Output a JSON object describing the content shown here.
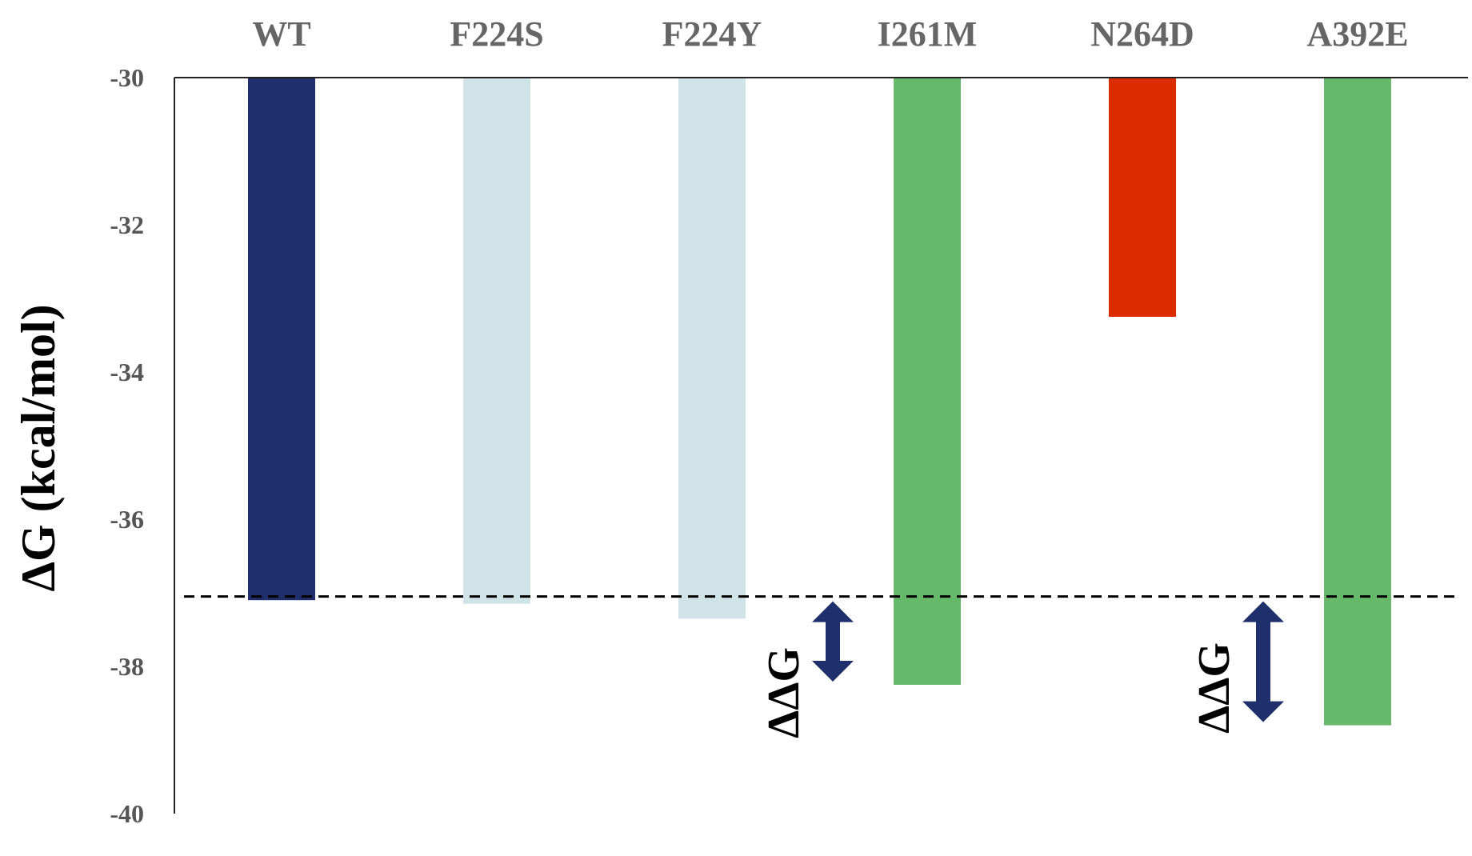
{
  "chart_data": {
    "type": "bar",
    "categories": [
      "WT",
      "F224S",
      "F224Y",
      "I261M",
      "N264D",
      "A392E"
    ],
    "values": [
      -37.1,
      -37.15,
      -37.35,
      -38.25,
      -33.25,
      -38.8
    ],
    "colors": [
      "#1f2f6b",
      "#d0e4e8",
      "#d0e4e8",
      "#66b96a",
      "#dd2c00",
      "#66b96a"
    ],
    "ylabel": "ΔG (kcal/mol)",
    "ylim": [
      -40,
      -30
    ],
    "yticks": [
      -30,
      -32,
      -34,
      -36,
      -38,
      -40
    ],
    "ytick_labels": [
      "-30",
      "-32",
      "-34",
      "-36",
      "-38",
      "-40"
    ],
    "x_axis_position": "top",
    "reference_line": {
      "value": -37.05,
      "style": "dashed",
      "color": "#000000"
    },
    "annotations": [
      {
        "text": "ΔΔG",
        "category": "I261M",
        "from": -37.05,
        "to": -38.25,
        "arrow_color": "#1f2f6b"
      },
      {
        "text": "ΔΔG",
        "category": "A392E",
        "from": -37.05,
        "to": -38.8,
        "arrow_color": "#1f2f6b"
      }
    ],
    "grid": false
  }
}
